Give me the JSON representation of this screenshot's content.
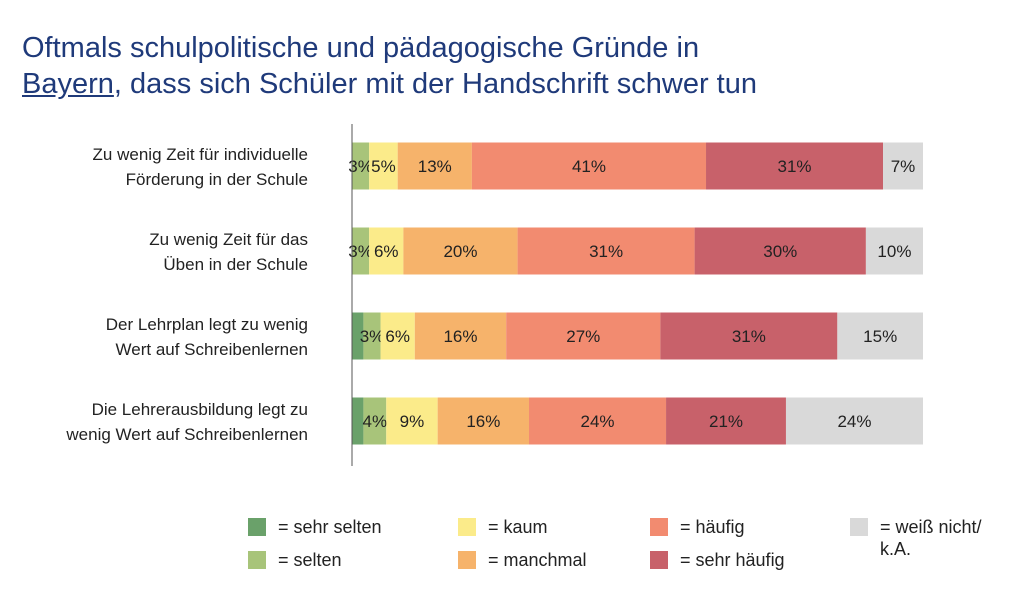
{
  "title": {
    "part1": "Oftmals schulpolitische und pädagogische Gründe in",
    "underlined": "Bayern",
    "part2": ", dass sich Schüler mit der Handschrift schwer tun"
  },
  "chart_data": {
    "type": "bar",
    "orientation": "horizontal",
    "stacked": true,
    "categories": [
      "Zu wenig Zeit für individuelle Förderung in der Schule",
      "Zu wenig Zeit für das Üben in der Schule",
      "Der Lehrplan legt zu wenig Wert auf Schreibenlernen",
      "Die Lehrerausbildung legt zu wenig Wert auf Schreibenlernen"
    ],
    "category_lines": [
      [
        "Zu wenig Zeit für individuelle",
        "Förderung in der Schule"
      ],
      [
        "Zu wenig Zeit für das",
        "Üben in der Schule"
      ],
      [
        "Der Lehrplan legt zu wenig",
        "Wert auf Schreibenlernen"
      ],
      [
        "Die Lehrerausbildung legt zu",
        "wenig Wert auf Schreibenlernen"
      ]
    ],
    "series": [
      {
        "name": "= sehr selten",
        "color": "#6aa16a",
        "values": [
          0,
          0,
          2,
          2
        ],
        "labels": [
          "",
          "",
          "",
          ""
        ]
      },
      {
        "name": "= selten",
        "color": "#a8c47a",
        "values": [
          3,
          3,
          3,
          4
        ],
        "labels": [
          "3%",
          "3%",
          "3%",
          "4%"
        ]
      },
      {
        "name": "= kaum",
        "color": "#fbeb8a",
        "values": [
          5,
          6,
          6,
          9
        ],
        "labels": [
          "5%",
          "6%",
          "6%",
          "9%"
        ]
      },
      {
        "name": "= manchmal",
        "color": "#f6b36b",
        "values": [
          13,
          20,
          16,
          16
        ],
        "labels": [
          "13%",
          "20%",
          "16%",
          "16%"
        ]
      },
      {
        "name": "= häufig",
        "color": "#f28b70",
        "values": [
          41,
          31,
          27,
          24
        ],
        "labels": [
          "41%",
          "31%",
          "27%",
          "24%"
        ]
      },
      {
        "name": "= sehr häufig",
        "color": "#c8616a",
        "values": [
          31,
          30,
          31,
          21
        ],
        "labels": [
          "31%",
          "30%",
          "31%",
          "21%"
        ]
      },
      {
        "name": "= weiß nicht/ k.A.",
        "color": "#d9d9d9",
        "values": [
          7,
          10,
          15,
          24
        ],
        "labels": [
          "7%",
          "10%",
          "15%",
          "24%"
        ]
      }
    ],
    "xlim": [
      0,
      100
    ]
  },
  "legend_rows": [
    [
      {
        "series": 0,
        "lines": [
          "= sehr selten"
        ]
      },
      {
        "series": 2,
        "lines": [
          "= kaum"
        ]
      },
      {
        "series": 4,
        "lines": [
          "= häufig"
        ]
      },
      {
        "series": 6,
        "lines": [
          "= weiß nicht/",
          "k.A."
        ]
      }
    ],
    [
      {
        "series": 1,
        "lines": [
          "= selten"
        ]
      },
      {
        "series": 3,
        "lines": [
          "= manchmal"
        ]
      },
      {
        "series": 5,
        "lines": [
          "= sehr häufig"
        ]
      }
    ]
  ]
}
